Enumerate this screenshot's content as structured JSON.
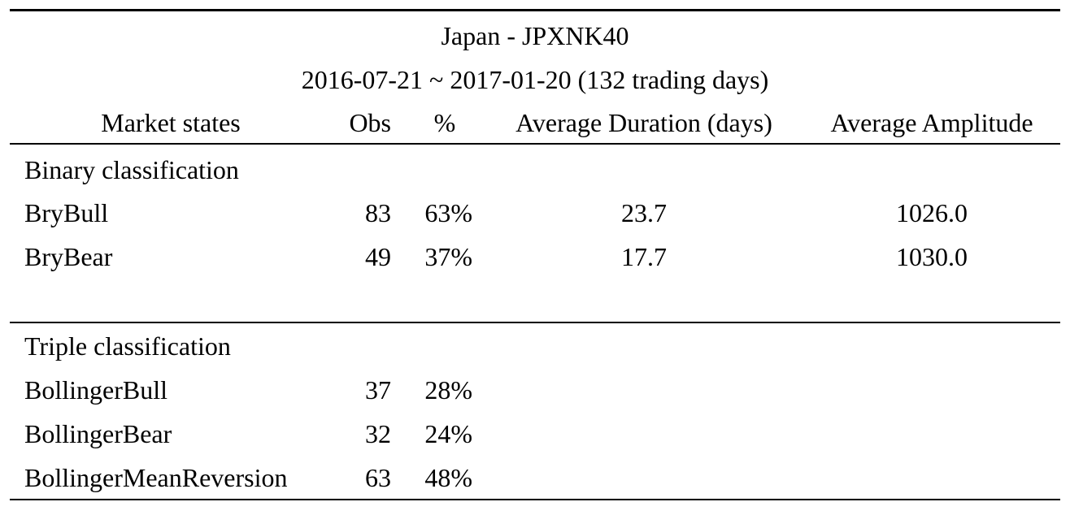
{
  "title": "Japan - JPXNK40",
  "subtitle": "2016-07-21 ~ 2017-01-20 (132 trading days)",
  "columns": [
    "Market states",
    "Obs",
    "%",
    "Average Duration (days)",
    "Average Amplitude"
  ],
  "sections": [
    {
      "title": "Binary classification",
      "rows": [
        [
          "BryBull",
          "83",
          "63%",
          "23.7",
          "1026.0"
        ],
        [
          "BryBear",
          "49",
          "37%",
          "17.7",
          "1030.0"
        ]
      ]
    },
    {
      "title": "Triple classification",
      "rows": [
        [
          "BollingerBull",
          "37",
          "28%"
        ],
        [
          "BollingerBear",
          "32",
          "24%"
        ],
        [
          "BollingerMeanReversion",
          "63",
          "48%"
        ]
      ]
    }
  ]
}
